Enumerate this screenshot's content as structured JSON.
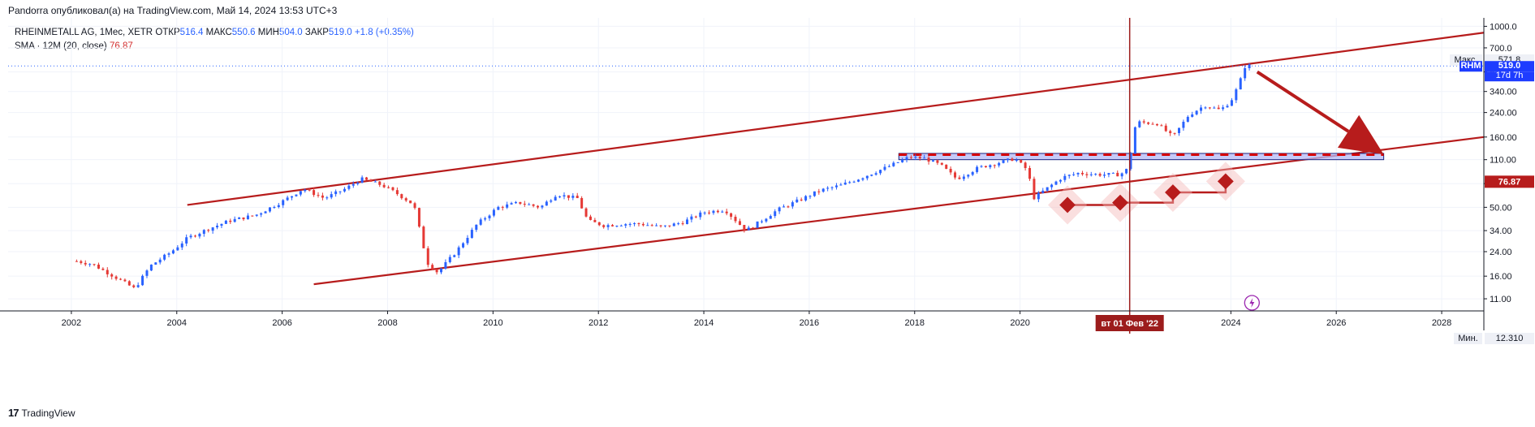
{
  "header": {
    "published": "Pandorra опубликовал(а) на TradingView.com, Май 14, 2024 13:53 UTC+3"
  },
  "legend": {
    "symbol": "RHEINMETALL AG, 1Мес, XETR",
    "open_label": "ОТКР",
    "open": "516.4",
    "high_label": "МАКС",
    "high": "550.6",
    "low_label": "МИН",
    "low": "504.0",
    "close_label": "ЗАКР",
    "close": "519.0",
    "change": "+1.8 (+0.35%)",
    "sma_label": "SMA · 12M (20, close)",
    "sma_value": "76.87"
  },
  "price_labels": {
    "max_label": "Макс.",
    "max_value": "571.8",
    "symbol_tag": "RHM",
    "last_price": "519.0",
    "countdown": "17d 7h",
    "sma_value": "76.87",
    "min_label": "Мин.",
    "min_value": "12.310"
  },
  "crosshair_date": "вт 01 Фев '22",
  "footer": {
    "brand": "TradingView",
    "logo_mark": "17"
  },
  "colors": {
    "candle_up": "#2962ff",
    "candle_down": "#e53935",
    "trendline": "#b71c1c",
    "crosshair": "#9c1c1c",
    "price_tag": "#1e3cff",
    "sma_tag": "#b71c1c"
  },
  "chart_data": {
    "type": "candlestick",
    "scale": "log",
    "ylim": [
      9,
      1150
    ],
    "xlim": [
      2000.8,
      2028.8
    ],
    "y_ticks": [
      "11.00",
      "16.00",
      "24.00",
      "34.00",
      "50.00",
      "74.00",
      "110.00",
      "160.00",
      "240.00",
      "340.00",
      "470.00",
      "700.0",
      "1000.0"
    ],
    "x_ticks": [
      "2002",
      "2004",
      "2006",
      "2008",
      "2010",
      "2012",
      "2014",
      "2016",
      "2018",
      "2020",
      "2024",
      "2026",
      "2028"
    ],
    "crosshair_x": 2022.08,
    "series_close": [
      [
        2002.1,
        20.5
      ],
      [
        2002.4,
        19.5
      ],
      [
        2002.8,
        16
      ],
      [
        2003.2,
        13
      ],
      [
        2003.5,
        19
      ],
      [
        2003.9,
        24
      ],
      [
        2004.2,
        30
      ],
      [
        2004.6,
        35
      ],
      [
        2005.0,
        40
      ],
      [
        2005.5,
        44
      ],
      [
        2006.0,
        55
      ],
      [
        2006.4,
        68
      ],
      [
        2006.8,
        58
      ],
      [
        2007.2,
        68
      ],
      [
        2007.5,
        80
      ],
      [
        2007.9,
        72
      ],
      [
        2008.2,
        62
      ],
      [
        2008.5,
        52
      ],
      [
        2008.75,
        20
      ],
      [
        2008.95,
        17
      ],
      [
        2009.3,
        24
      ],
      [
        2009.7,
        38
      ],
      [
        2010.1,
        50
      ],
      [
        2010.5,
        54
      ],
      [
        2010.9,
        50
      ],
      [
        2011.2,
        62
      ],
      [
        2011.6,
        58
      ],
      [
        2011.8,
        40
      ],
      [
        2012.1,
        37
      ],
      [
        2012.5,
        38
      ],
      [
        2012.8,
        38
      ],
      [
        2013.2,
        36
      ],
      [
        2013.6,
        39
      ],
      [
        2014.0,
        46
      ],
      [
        2014.4,
        48
      ],
      [
        2014.8,
        34
      ],
      [
        2015.0,
        38
      ],
      [
        2015.4,
        48
      ],
      [
        2015.8,
        56
      ],
      [
        2016.2,
        66
      ],
      [
        2016.6,
        72
      ],
      [
        2017.0,
        82
      ],
      [
        2017.5,
        98
      ],
      [
        2017.9,
        115
      ],
      [
        2018.2,
        112
      ],
      [
        2018.5,
        100
      ],
      [
        2018.8,
        80
      ],
      [
        2019.2,
        96
      ],
      [
        2019.6,
        105
      ],
      [
        2019.9,
        112
      ],
      [
        2020.15,
        92
      ],
      [
        2020.25,
        58
      ],
      [
        2020.5,
        68
      ],
      [
        2020.8,
        82
      ],
      [
        2021.1,
        88
      ],
      [
        2021.5,
        86
      ],
      [
        2021.9,
        86
      ],
      [
        2022.05,
        95
      ],
      [
        2022.2,
        205
      ],
      [
        2022.6,
        200
      ],
      [
        2022.9,
        160
      ],
      [
        2023.2,
        230
      ],
      [
        2023.5,
        270
      ],
      [
        2023.8,
        250
      ],
      [
        2024.0,
        290
      ],
      [
        2024.15,
        380
      ],
      [
        2024.28,
        530
      ],
      [
        2024.37,
        519
      ]
    ],
    "annotations": {
      "upper_channel_line": [
        [
          2004.2,
          52
        ],
        [
          2028.8,
          900
        ]
      ],
      "lower_channel_line": [
        [
          2006.6,
          14
        ],
        [
          2028.8,
          160
        ]
      ],
      "resistance_zone": [
        [
          2017.7,
          110
        ],
        [
          2026.9,
          122
        ]
      ],
      "sma_markers": [
        [
          2020.9,
          52
        ],
        [
          2021.9,
          54
        ],
        [
          2022.9,
          64
        ],
        [
          2023.9,
          76.87
        ]
      ],
      "down_arrow_from": [
        2024.5,
        470
      ],
      "down_arrow_to": [
        2026.9,
        120
      ]
    }
  }
}
